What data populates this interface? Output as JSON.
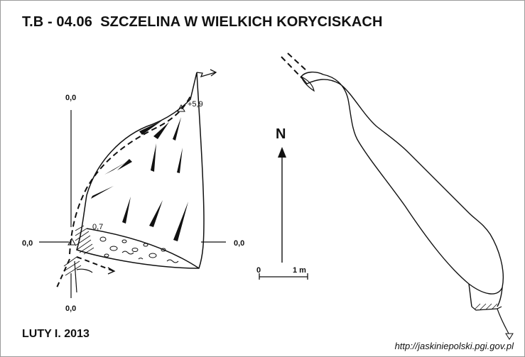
{
  "title": "T.B - 04.06  SZCZELINA W WIELKICH KORYCISKACH",
  "date": "LUTY I. 2013",
  "source_url": "http://jaskiniepolski.pgi.gov.pl",
  "cross_section": {
    "axis_top": "0,0",
    "axis_bottom": "0,0",
    "axis_left": "0,0",
    "axis_right": "0,0",
    "height_top": "+5,9",
    "height_floor": "0,7"
  },
  "north_arrow": {
    "label": "N"
  },
  "scale_bar": {
    "start_label": "0",
    "end_label": "1 m"
  }
}
